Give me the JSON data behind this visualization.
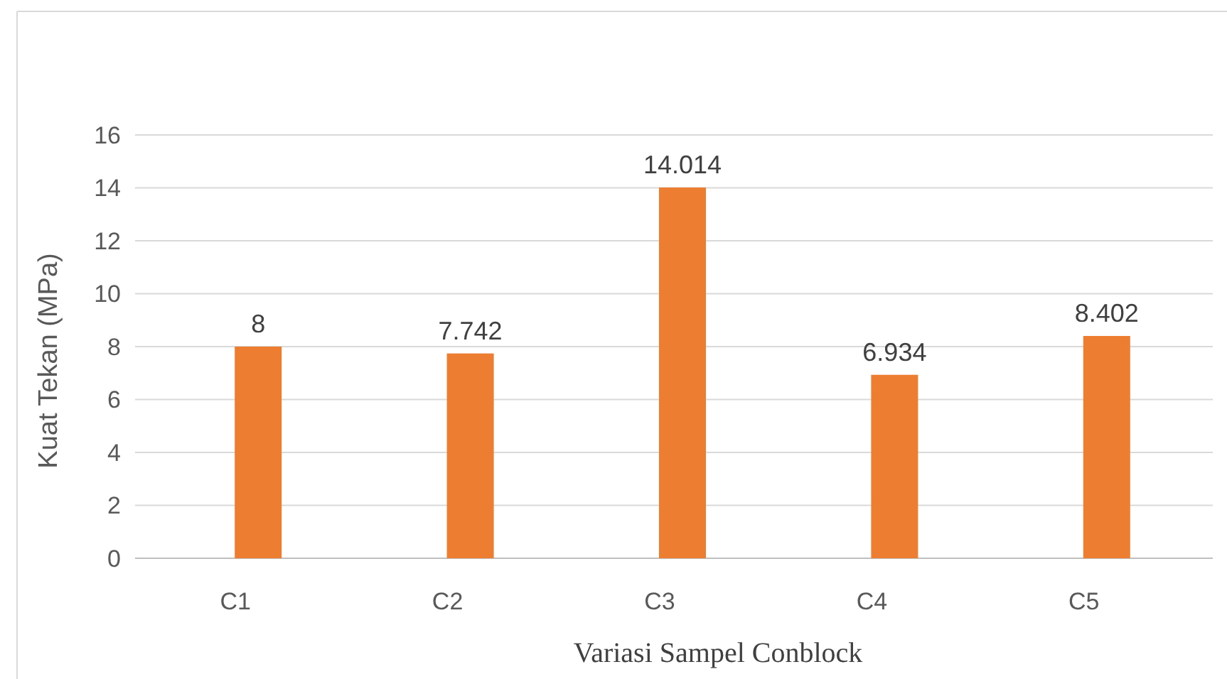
{
  "chart_data": {
    "type": "bar",
    "xlabel": "Variasi Sampel Conblock",
    "ylabel": "Kuat Tekan (MPa)",
    "categories": [
      "C1",
      "C2",
      "C3",
      "C4",
      "C5"
    ],
    "values": [
      8,
      7.742,
      14.014,
      6.934,
      8.402
    ],
    "color": "#ed7d31",
    "ylim": [
      0,
      16
    ],
    "yticks": [
      0,
      2,
      4,
      6,
      8,
      10,
      12,
      14,
      16
    ],
    "grid": "y",
    "data_labels": true
  }
}
